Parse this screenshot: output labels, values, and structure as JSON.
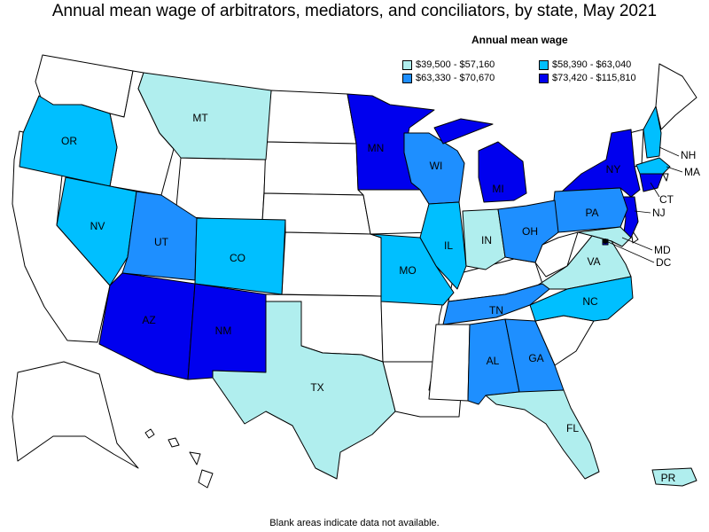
{
  "title": "Annual mean wage of arbitrators, mediators, and conciliators, by state, May 2021",
  "legend": {
    "title": "Annual mean wage",
    "items": [
      {
        "range": "$39,500 - $57,160",
        "color": "#b0eeee"
      },
      {
        "range": "$58,390 - $63,040",
        "color": "#00bfff"
      },
      {
        "range": "$63,330 - $70,670",
        "color": "#1e8fff"
      },
      {
        "range": "$73,420 - $115,810",
        "color": "#0000ee"
      }
    ]
  },
  "footnote": "Blank areas indicate data not available.",
  "colors": {
    "no_data": "#ffffff",
    "border": "#000000"
  },
  "states": {
    "OR": {
      "label": "OR",
      "bin": 1
    },
    "MT": {
      "label": "MT",
      "bin": 0
    },
    "MN": {
      "label": "MN",
      "bin": 3
    },
    "WI": {
      "label": "WI",
      "bin": 2
    },
    "MI": {
      "label": "MI",
      "bin": 3
    },
    "NY": {
      "label": "NY",
      "bin": 3
    },
    "NH": {
      "label": "NH",
      "bin": 1
    },
    "MA": {
      "label": "MA",
      "bin": 1
    },
    "CT": {
      "label": "CT",
      "bin": 3
    },
    "NJ": {
      "label": "NJ",
      "bin": 3
    },
    "MD": {
      "label": "MD",
      "bin": 0
    },
    "DC": {
      "label": "DC",
      "bin": 3
    },
    "PA": {
      "label": "PA",
      "bin": 2
    },
    "NV": {
      "label": "NV",
      "bin": 1
    },
    "UT": {
      "label": "UT",
      "bin": 2
    },
    "CO": {
      "label": "CO",
      "bin": 1
    },
    "IL": {
      "label": "IL",
      "bin": 1
    },
    "IN": {
      "label": "IN",
      "bin": 0
    },
    "OH": {
      "label": "OH",
      "bin": 2
    },
    "MO": {
      "label": "MO",
      "bin": 1
    },
    "VA": {
      "label": "VA",
      "bin": 0
    },
    "AZ": {
      "label": "AZ",
      "bin": 3
    },
    "NM": {
      "label": "NM",
      "bin": 3
    },
    "TN": {
      "label": "TN",
      "bin": 2
    },
    "NC": {
      "label": "NC",
      "bin": 1
    },
    "AL": {
      "label": "AL",
      "bin": 2
    },
    "GA": {
      "label": "GA",
      "bin": 2
    },
    "TX": {
      "label": "TX",
      "bin": 0
    },
    "FL": {
      "label": "FL",
      "bin": 0
    },
    "PR": {
      "label": "PR",
      "bin": 0
    }
  }
}
